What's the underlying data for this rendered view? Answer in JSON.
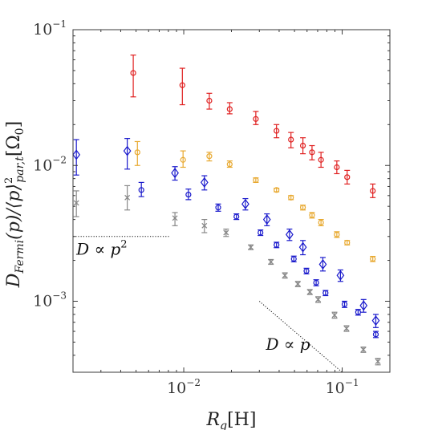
{
  "chart_data": {
    "type": "scatter",
    "xlabel": "R_g[H]",
    "ylabel": "D_Fermi(p)/⟨p⟩²_par,t [Ω₀]",
    "xscale": "log",
    "yscale": "log",
    "xlim": [
      0.002,
      0.2
    ],
    "ylim": [
      0.0003,
      0.1
    ],
    "grid": false,
    "legend": "none",
    "x_ticks": [
      {
        "value": 0.01,
        "base": "10",
        "exp": "−2"
      },
      {
        "value": 0.1,
        "base": "10",
        "exp": "−1"
      }
    ],
    "y_ticks": [
      {
        "value": 0.001,
        "base": "10",
        "exp": "−3"
      },
      {
        "value": 0.01,
        "base": "10",
        "exp": "−2"
      },
      {
        "value": 0.1,
        "base": "10",
        "exp": "−1"
      }
    ],
    "series": [
      {
        "color": "#e02020",
        "marker": "circle",
        "points": [
          {
            "x": 0.0048,
            "y": 0.048,
            "lo": 0.032,
            "hi": 0.065
          },
          {
            "x": 0.0098,
            "y": 0.039,
            "lo": 0.028,
            "hi": 0.052
          },
          {
            "x": 0.0145,
            "y": 0.03,
            "lo": 0.026,
            "hi": 0.034
          },
          {
            "x": 0.0195,
            "y": 0.026,
            "lo": 0.024,
            "hi": 0.029
          },
          {
            "x": 0.0285,
            "y": 0.022,
            "lo": 0.02,
            "hi": 0.025
          },
          {
            "x": 0.0385,
            "y": 0.018,
            "lo": 0.016,
            "hi": 0.02
          },
          {
            "x": 0.0475,
            "y": 0.0155,
            "lo": 0.0135,
            "hi": 0.0175
          },
          {
            "x": 0.0565,
            "y": 0.014,
            "lo": 0.0122,
            "hi": 0.016
          },
          {
            "x": 0.0645,
            "y": 0.0125,
            "lo": 0.011,
            "hi": 0.014
          },
          {
            "x": 0.0735,
            "y": 0.011,
            "lo": 0.0097,
            "hi": 0.0125
          },
          {
            "x": 0.0925,
            "y": 0.0097,
            "lo": 0.0087,
            "hi": 0.0108
          },
          {
            "x": 0.1075,
            "y": 0.0082,
            "lo": 0.0073,
            "hi": 0.0092
          },
          {
            "x": 0.156,
            "y": 0.0065,
            "lo": 0.0058,
            "hi": 0.0073
          }
        ]
      },
      {
        "color": "#e8a930",
        "marker": "circle",
        "points": [
          {
            "x": 0.0051,
            "y": 0.0125,
            "lo": 0.01,
            "hi": 0.015
          },
          {
            "x": 0.0099,
            "y": 0.011,
            "lo": 0.0097,
            "hi": 0.0128
          },
          {
            "x": 0.0145,
            "y": 0.0117,
            "lo": 0.0108,
            "hi": 0.0125
          },
          {
            "x": 0.0195,
            "y": 0.0102,
            "lo": 0.0097,
            "hi": 0.0108
          },
          {
            "x": 0.0285,
            "y": 0.0078,
            "lo": 0.0075,
            "hi": 0.0081
          },
          {
            "x": 0.0385,
            "y": 0.0066,
            "lo": 0.0064,
            "hi": 0.0068
          },
          {
            "x": 0.0475,
            "y": 0.0058,
            "lo": 0.0056,
            "hi": 0.006
          },
          {
            "x": 0.0565,
            "y": 0.0049,
            "lo": 0.0047,
            "hi": 0.0051
          },
          {
            "x": 0.0645,
            "y": 0.0043,
            "lo": 0.0041,
            "hi": 0.0045
          },
          {
            "x": 0.0735,
            "y": 0.0038,
            "lo": 0.0036,
            "hi": 0.004
          },
          {
            "x": 0.0925,
            "y": 0.0031,
            "lo": 0.00295,
            "hi": 0.00325
          },
          {
            "x": 0.1075,
            "y": 0.0027,
            "lo": 0.0026,
            "hi": 0.0028
          },
          {
            "x": 0.156,
            "y": 0.00205,
            "lo": 0.00196,
            "hi": 0.00214
          }
        ]
      },
      {
        "color": "#1a1acc",
        "marker": "diamond",
        "points": [
          {
            "x": 0.0021,
            "y": 0.012,
            "lo": 0.0085,
            "hi": 0.0155
          },
          {
            "x": 0.0044,
            "y": 0.0128,
            "lo": 0.0094,
            "hi": 0.0158
          },
          {
            "x": 0.0088,
            "y": 0.0088,
            "lo": 0.0078,
            "hi": 0.0098
          },
          {
            "x": 0.0135,
            "y": 0.0075,
            "lo": 0.0066,
            "hi": 0.0084
          },
          {
            "x": 0.0245,
            "y": 0.0052,
            "lo": 0.0047,
            "hi": 0.0057
          },
          {
            "x": 0.0335,
            "y": 0.004,
            "lo": 0.0036,
            "hi": 0.0044
          },
          {
            "x": 0.0465,
            "y": 0.0031,
            "lo": 0.0028,
            "hi": 0.0034
          },
          {
            "x": 0.0565,
            "y": 0.0025,
            "lo": 0.0022,
            "hi": 0.0028
          },
          {
            "x": 0.0755,
            "y": 0.00187,
            "lo": 0.00167,
            "hi": 0.0021
          },
          {
            "x": 0.0975,
            "y": 0.00155,
            "lo": 0.0014,
            "hi": 0.0017
          },
          {
            "x": 0.1365,
            "y": 0.00093,
            "lo": 0.00083,
            "hi": 0.00103
          },
          {
            "x": 0.163,
            "y": 0.00072,
            "lo": 0.00064,
            "hi": 0.0008
          }
        ]
      },
      {
        "color": "#1a1acc",
        "marker": "circle",
        "points": [
          {
            "x": 0.0054,
            "y": 0.0066,
            "lo": 0.0059,
            "hi": 0.0075
          },
          {
            "x": 0.0107,
            "y": 0.0061,
            "lo": 0.0056,
            "hi": 0.0067
          },
          {
            "x": 0.0165,
            "y": 0.0049,
            "lo": 0.0046,
            "hi": 0.0052
          },
          {
            "x": 0.0215,
            "y": 0.0042,
            "lo": 0.004,
            "hi": 0.0044
          },
          {
            "x": 0.0305,
            "y": 0.0032,
            "lo": 0.00305,
            "hi": 0.00335
          },
          {
            "x": 0.0385,
            "y": 0.0026,
            "lo": 0.00248,
            "hi": 0.00272
          },
          {
            "x": 0.0495,
            "y": 0.00205,
            "lo": 0.00195,
            "hi": 0.00215
          },
          {
            "x": 0.0595,
            "y": 0.00167,
            "lo": 0.00159,
            "hi": 0.00175
          },
          {
            "x": 0.0685,
            "y": 0.00137,
            "lo": 0.0013,
            "hi": 0.00144
          },
          {
            "x": 0.0785,
            "y": 0.00115,
            "lo": 0.0011,
            "hi": 0.0012
          },
          {
            "x": 0.1035,
            "y": 0.00095,
            "lo": 0.0009,
            "hi": 0.001
          },
          {
            "x": 0.126,
            "y": 0.00083,
            "lo": 0.00079,
            "hi": 0.00087
          },
          {
            "x": 0.163,
            "y": 0.00057,
            "lo": 0.00054,
            "hi": 0.0006
          }
        ]
      },
      {
        "color": "#888888",
        "marker": "x",
        "points": [
          {
            "x": 0.0021,
            "y": 0.0053,
            "lo": 0.0042,
            "hi": 0.0065
          },
          {
            "x": 0.0044,
            "y": 0.0058,
            "lo": 0.0047,
            "hi": 0.0071
          },
          {
            "x": 0.0088,
            "y": 0.0041,
            "lo": 0.0036,
            "hi": 0.0045
          },
          {
            "x": 0.0135,
            "y": 0.0036,
            "lo": 0.0032,
            "hi": 0.004
          },
          {
            "x": 0.0185,
            "y": 0.0032,
            "lo": 0.003,
            "hi": 0.0034
          },
          {
            "x": 0.0265,
            "y": 0.0025,
            "lo": 0.0024,
            "hi": 0.0026
          },
          {
            "x": 0.0355,
            "y": 0.00195,
            "lo": 0.00187,
            "hi": 0.00203
          },
          {
            "x": 0.0435,
            "y": 0.00155,
            "lo": 0.00148,
            "hi": 0.00162
          },
          {
            "x": 0.0525,
            "y": 0.00134,
            "lo": 0.00128,
            "hi": 0.0014
          },
          {
            "x": 0.0625,
            "y": 0.00117,
            "lo": 0.00112,
            "hi": 0.00122
          },
          {
            "x": 0.0705,
            "y": 0.00103,
            "lo": 0.00098,
            "hi": 0.00108
          },
          {
            "x": 0.0895,
            "y": 0.00079,
            "lo": 0.00075,
            "hi": 0.00083
          },
          {
            "x": 0.1065,
            "y": 0.00063,
            "lo": 0.0006,
            "hi": 0.00066
          },
          {
            "x": 0.136,
            "y": 0.00044,
            "lo": 0.00042,
            "hi": 0.00046
          },
          {
            "x": 0.168,
            "y": 0.00036,
            "lo": 0.00034,
            "hi": 0.00038
          }
        ]
      }
    ],
    "reference_lines": [
      {
        "x1": 0.002,
        "y1": 0.003,
        "x2": 0.0082,
        "y2": 0.003
      },
      {
        "x1": 0.03,
        "y1": 0.001,
        "x2": 0.1,
        "y2": 0.0003
      }
    ],
    "annotations": [
      {
        "lhs": "D",
        "op": "∝",
        "rhs": "p",
        "sup": "2",
        "at": [
          0.0021,
          0.0022
        ]
      },
      {
        "lhs": "D",
        "op": "∝",
        "rhs": "p",
        "sup": "",
        "at": [
          0.033,
          0.00044
        ]
      }
    ]
  }
}
